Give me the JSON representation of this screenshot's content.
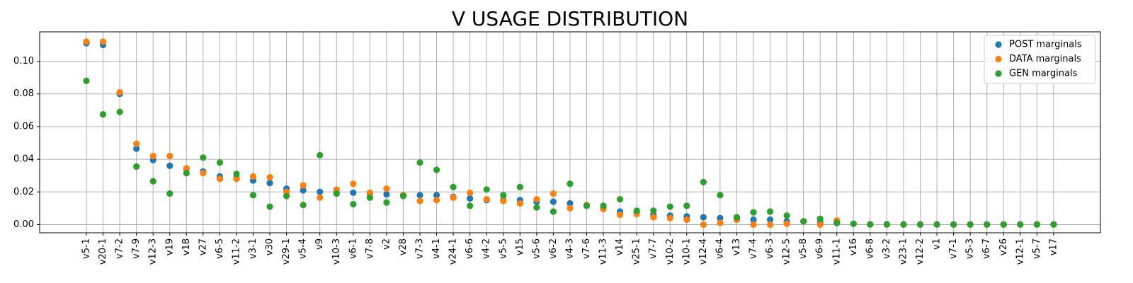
{
  "chart_data": {
    "type": "scatter",
    "title": "V USAGE DISTRIBUTION",
    "xlabel": "",
    "ylabel": "",
    "ylim": [
      -0.005,
      0.118
    ],
    "yticks": [
      0.0,
      0.02,
      0.04,
      0.06,
      0.08,
      0.1
    ],
    "ytick_labels": [
      "0.00",
      "0.02",
      "0.04",
      "0.06",
      "0.08",
      "0.10"
    ],
    "grid": true,
    "legend_position": "top-right",
    "categories": [
      "v5-1",
      "v20-1",
      "v7-2",
      "v7-9",
      "v12-3",
      "v19",
      "v18",
      "v27",
      "v6-5",
      "v11-2",
      "v3-1",
      "v30",
      "v29-1",
      "v5-4",
      "v9",
      "v10-3",
      "v6-1",
      "v7-8",
      "v2",
      "v28",
      "v7-3",
      "v4-1",
      "v24-1",
      "v6-6",
      "v4-2",
      "v5-5",
      "v15",
      "v5-6",
      "v6-2",
      "v4-3",
      "v7-6",
      "v11-3",
      "v14",
      "v25-1",
      "v7-7",
      "v10-2",
      "v10-1",
      "v12-4",
      "v6-4",
      "v13",
      "v7-4",
      "v6-3",
      "v12-5",
      "v5-8",
      "v6-9",
      "v11-1",
      "v16",
      "v6-8",
      "v3-2",
      "v23-1",
      "v12-2",
      "v1",
      "v7-1",
      "v5-3",
      "v6-7",
      "v26",
      "v12-1",
      "v5-7",
      "v17"
    ],
    "series": [
      {
        "name": "POST marginals",
        "color": "#1f77b4",
        "values": [
          0.111,
          0.11,
          0.08,
          0.0465,
          0.0395,
          0.036,
          0.034,
          0.0325,
          0.0295,
          0.0285,
          0.027,
          0.0255,
          0.022,
          0.021,
          0.02,
          0.0195,
          0.0195,
          0.019,
          0.0185,
          0.018,
          0.018,
          0.018,
          0.017,
          0.016,
          0.015,
          0.015,
          0.015,
          0.014,
          0.014,
          0.013,
          0.0115,
          0.01,
          0.008,
          0.0075,
          0.006,
          0.0055,
          0.005,
          0.0045,
          0.004,
          0.0035,
          0.003,
          0.003,
          0.002,
          0.002,
          0.0015,
          0.001,
          0.0005,
          0.0002,
          0.0002,
          0.0001,
          0.0001,
          0.0001,
          0.0001,
          0.0001,
          0.0001,
          0.0001,
          0.0001,
          0.0001,
          0.0001
        ]
      },
      {
        "name": "DATA marginals",
        "color": "#ff7f0e",
        "values": [
          0.112,
          0.112,
          0.081,
          0.0495,
          0.042,
          0.042,
          0.0345,
          0.0315,
          0.028,
          0.028,
          0.0295,
          0.029,
          0.02,
          0.024,
          0.0165,
          0.0215,
          0.025,
          0.0195,
          0.022,
          0.018,
          0.0145,
          0.015,
          0.0165,
          0.0195,
          0.0155,
          0.0145,
          0.013,
          0.0155,
          0.019,
          0.01,
          0.012,
          0.0095,
          0.006,
          0.0065,
          0.0045,
          0.004,
          0.003,
          0.0,
          0.001,
          0.003,
          0.0,
          0.0,
          0.0005,
          0.002,
          0.0,
          0.0025,
          0.0005,
          0.0001,
          0.0001,
          0.0001,
          0.0001,
          0.0001,
          0.0001,
          0.0001,
          0.0001,
          0.0001,
          0.0001,
          0.0001,
          0.0001
        ]
      },
      {
        "name": "GEN marginals",
        "color": "#2ca02c",
        "values": [
          0.088,
          0.0675,
          0.069,
          0.0355,
          0.0265,
          0.019,
          0.0315,
          0.041,
          0.038,
          0.031,
          0.018,
          0.011,
          0.0175,
          0.012,
          0.0425,
          0.019,
          0.0125,
          0.0165,
          0.0135,
          0.0175,
          0.038,
          0.0335,
          0.023,
          0.0115,
          0.0215,
          0.018,
          0.023,
          0.0105,
          0.008,
          0.025,
          0.0115,
          0.0115,
          0.0155,
          0.0085,
          0.0085,
          0.011,
          0.0115,
          0.026,
          0.018,
          0.0045,
          0.0075,
          0.008,
          0.0055,
          0.002,
          0.0035,
          0.001,
          0.0005,
          0.0001,
          0.0001,
          0.0001,
          0.0001,
          0.0001,
          0.0001,
          0.0001,
          0.0001,
          0.0001,
          0.0001,
          0.0001,
          0.0001
        ]
      }
    ]
  }
}
